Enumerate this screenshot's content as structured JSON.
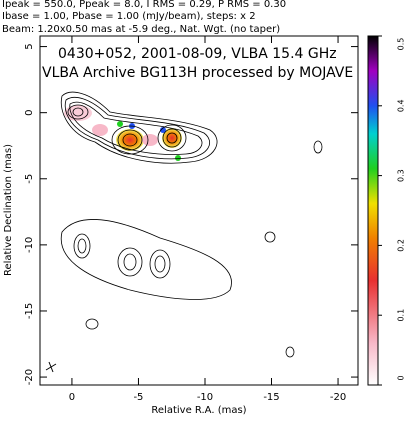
{
  "chart_data": {
    "type": "contour",
    "header": [
      "Ipeak = 550.0, Ppeak = 8.0, I RMS = 0.29, P RMS = 0.30",
      "Ibase = 1.00, Pbase = 1.00 (mJy/beam), steps: x 2",
      "Beam: 1.20x0.50 mas at -5.9 deg., Nat. Wgt. (no taper)"
    ],
    "title": "0430+052, 2001-08-09, VLBA 15.4 GHz",
    "subtitle": "VLBA Archive BG113H processed by MOJAVE",
    "x_label": "Relative R.A. (mas)",
    "y_label": "Relative Declination (mas)",
    "xlim": [
      2.4,
      -21.5
    ],
    "xticks": [
      0,
      -5,
      -10,
      -15,
      -20
    ],
    "ylim": [
      -20.6,
      5.8
    ],
    "yticks": [
      5,
      0,
      -5,
      -10,
      -15,
      -20
    ],
    "colorbar_lim": [
      0,
      0.5
    ],
    "colorbar_ticks": [
      0,
      0.1,
      0.2,
      0.3,
      0.4,
      0.5
    ]
  }
}
